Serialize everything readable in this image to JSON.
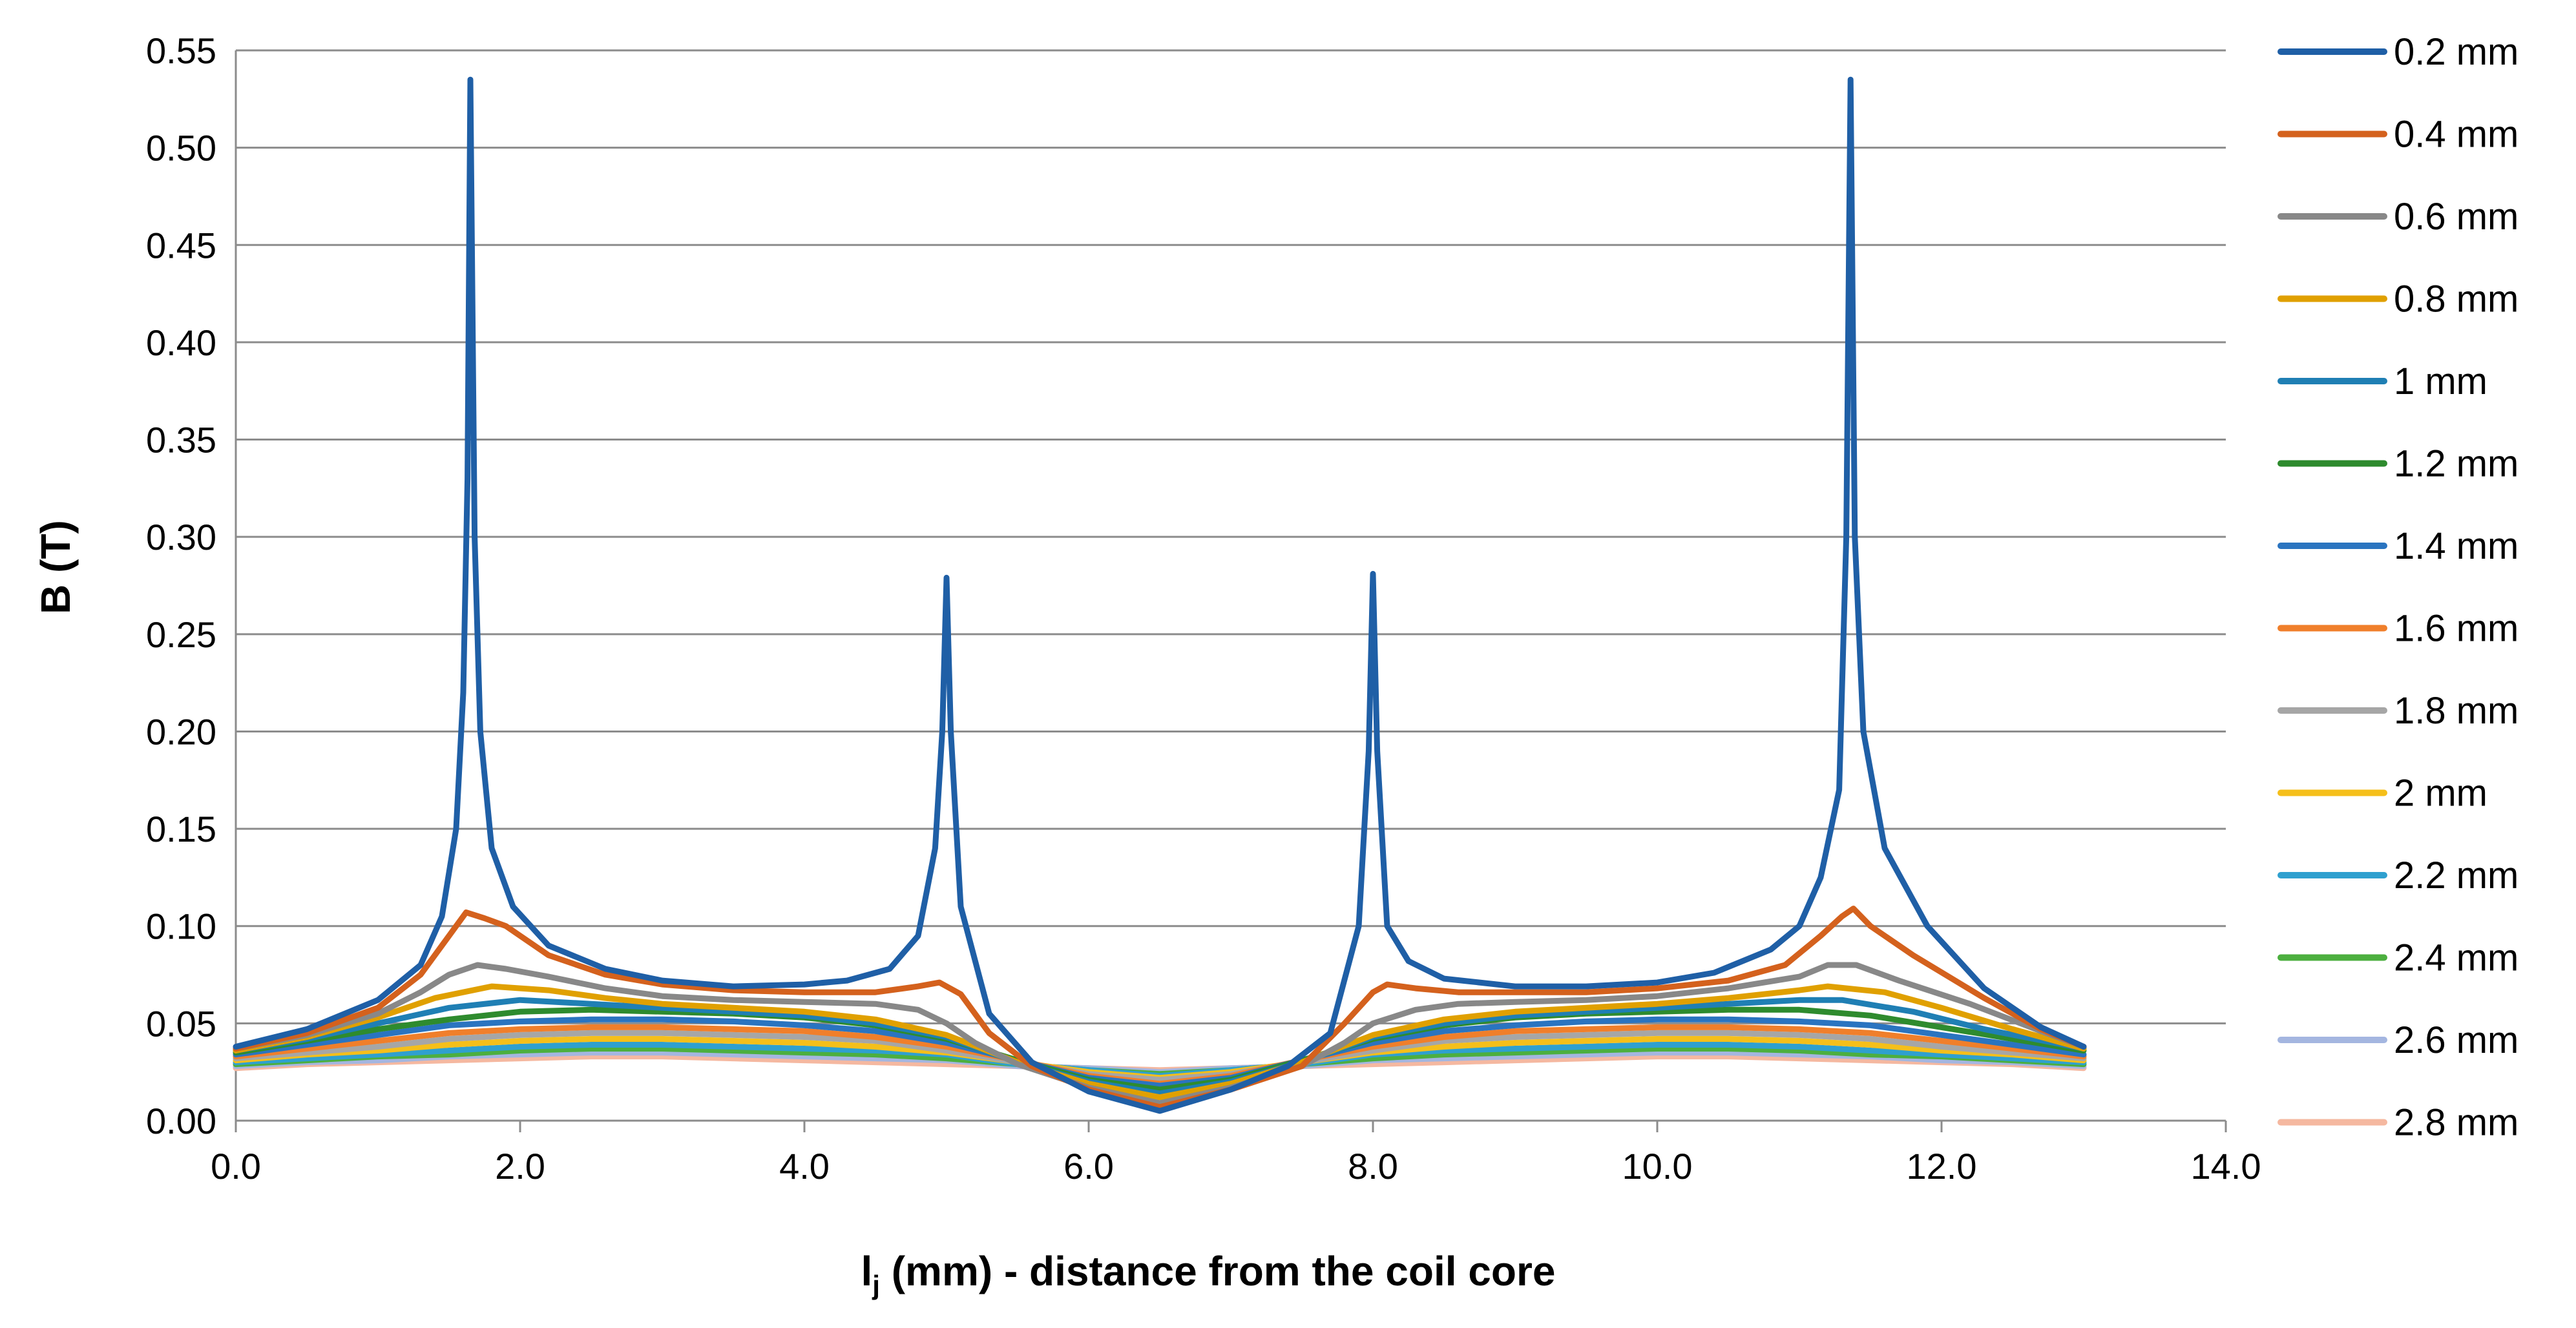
{
  "chart_data": {
    "type": "line",
    "title": "",
    "xlabel_main": "l",
    "xlabel_sub": "j",
    "xlabel_rest": " (mm) - distance from the coil core",
    "ylabel": "B (T)",
    "xlim": [
      0,
      14
    ],
    "ylim": [
      0,
      0.55
    ],
    "grid": "horizontal",
    "legend_position": "right",
    "x_ticks": [
      0,
      2,
      4,
      6,
      8,
      10,
      12,
      14
    ],
    "x_tick_labels": [
      "0.0",
      "2.0",
      "4.0",
      "6.0",
      "8.0",
      "10.0",
      "12.0",
      "14.0"
    ],
    "y_ticks": [
      0,
      0.05,
      0.1,
      0.15,
      0.2,
      0.25,
      0.3,
      0.35,
      0.4,
      0.45,
      0.5,
      0.55
    ],
    "y_tick_labels": [
      "0.00",
      "0.05",
      "0.10",
      "0.15",
      "0.20",
      "0.25",
      "0.30",
      "0.35",
      "0.40",
      "0.45",
      "0.50",
      "0.55"
    ],
    "series": [
      {
        "name": "0.2 mm",
        "color": "#1f5fa6",
        "x": [
          0,
          0.5,
          1.0,
          1.3,
          1.45,
          1.55,
          1.6,
          1.63,
          1.65,
          1.68,
          1.72,
          1.8,
          1.95,
          2.2,
          2.6,
          3.0,
          3.5,
          4.0,
          4.3,
          4.6,
          4.8,
          4.92,
          4.97,
          5.0,
          5.03,
          5.1,
          5.3,
          5.6,
          6.0,
          6.5,
          7.0,
          7.4,
          7.7,
          7.9,
          7.97,
          8.0,
          8.03,
          8.1,
          8.25,
          8.5,
          9.0,
          9.5,
          10.0,
          10.4,
          10.8,
          11.0,
          11.15,
          11.28,
          11.33,
          11.36,
          11.39,
          11.45,
          11.6,
          11.9,
          12.3,
          12.7,
          13.0
        ],
        "y": [
          0.038,
          0.047,
          0.062,
          0.08,
          0.105,
          0.15,
          0.22,
          0.33,
          0.535,
          0.3,
          0.2,
          0.14,
          0.11,
          0.09,
          0.078,
          0.072,
          0.069,
          0.07,
          0.072,
          0.078,
          0.095,
          0.14,
          0.2,
          0.279,
          0.2,
          0.11,
          0.055,
          0.03,
          0.015,
          0.005,
          0.016,
          0.028,
          0.045,
          0.1,
          0.19,
          0.281,
          0.19,
          0.1,
          0.082,
          0.073,
          0.069,
          0.069,
          0.071,
          0.076,
          0.088,
          0.1,
          0.125,
          0.17,
          0.3,
          0.535,
          0.3,
          0.2,
          0.14,
          0.1,
          0.068,
          0.048,
          0.038
        ]
      },
      {
        "name": "0.4 mm",
        "color": "#d4611d",
        "x": [
          0,
          0.5,
          1.0,
          1.3,
          1.5,
          1.62,
          1.75,
          1.9,
          2.2,
          2.6,
          3.0,
          3.5,
          4.0,
          4.5,
          4.8,
          4.95,
          5.1,
          5.3,
          5.6,
          6.0,
          6.5,
          7.0,
          7.5,
          7.8,
          8.0,
          8.1,
          8.3,
          8.6,
          9.0,
          9.5,
          10.0,
          10.5,
          10.9,
          11.15,
          11.3,
          11.38,
          11.5,
          11.8,
          12.3,
          12.7,
          13.0
        ],
        "y": [
          0.037,
          0.045,
          0.058,
          0.075,
          0.095,
          0.107,
          0.104,
          0.1,
          0.085,
          0.075,
          0.07,
          0.067,
          0.066,
          0.066,
          0.069,
          0.071,
          0.065,
          0.045,
          0.028,
          0.016,
          0.007,
          0.016,
          0.028,
          0.05,
          0.066,
          0.07,
          0.068,
          0.066,
          0.066,
          0.066,
          0.068,
          0.072,
          0.08,
          0.095,
          0.105,
          0.109,
          0.1,
          0.085,
          0.063,
          0.047,
          0.038
        ]
      },
      {
        "name": "0.6 mm",
        "color": "#888888",
        "x": [
          0,
          0.5,
          1.0,
          1.3,
          1.5,
          1.7,
          1.9,
          2.2,
          2.6,
          3.0,
          3.5,
          4.0,
          4.5,
          4.8,
          5.0,
          5.2,
          5.5,
          6.0,
          6.5,
          7.0,
          7.5,
          7.8,
          8.0,
          8.3,
          8.6,
          9.0,
          9.5,
          10.0,
          10.5,
          11.0,
          11.2,
          11.4,
          11.7,
          12.2,
          12.7,
          13.0
        ],
        "y": [
          0.037,
          0.044,
          0.055,
          0.066,
          0.075,
          0.08,
          0.078,
          0.074,
          0.068,
          0.064,
          0.062,
          0.061,
          0.06,
          0.057,
          0.05,
          0.04,
          0.029,
          0.017,
          0.009,
          0.017,
          0.028,
          0.04,
          0.05,
          0.057,
          0.06,
          0.061,
          0.062,
          0.064,
          0.068,
          0.074,
          0.08,
          0.08,
          0.072,
          0.06,
          0.046,
          0.038
        ]
      },
      {
        "name": "0.8 mm",
        "color": "#e0a000",
        "x": [
          0,
          0.5,
          1.0,
          1.4,
          1.8,
          2.2,
          2.6,
          3.0,
          3.5,
          4.0,
          4.5,
          5.0,
          5.5,
          6.0,
          6.5,
          7.0,
          7.5,
          8.0,
          8.5,
          9.0,
          9.5,
          10.0,
          10.5,
          11.0,
          11.2,
          11.6,
          12.0,
          12.5,
          13.0
        ],
        "y": [
          0.036,
          0.043,
          0.053,
          0.063,
          0.069,
          0.067,
          0.063,
          0.06,
          0.058,
          0.056,
          0.052,
          0.044,
          0.03,
          0.019,
          0.012,
          0.019,
          0.03,
          0.044,
          0.052,
          0.056,
          0.058,
          0.06,
          0.063,
          0.067,
          0.069,
          0.066,
          0.058,
          0.047,
          0.037
        ]
      },
      {
        "name": "1 mm",
        "color": "#1f7fb4",
        "x": [
          0,
          0.5,
          1.0,
          1.5,
          2.0,
          2.5,
          3.0,
          3.5,
          4.0,
          4.5,
          5.0,
          5.5,
          6.0,
          6.5,
          7.0,
          7.5,
          8.0,
          8.5,
          9.0,
          9.5,
          10.0,
          10.5,
          11.0,
          11.3,
          11.8,
          12.3,
          13.0
        ],
        "y": [
          0.036,
          0.042,
          0.05,
          0.058,
          0.062,
          0.06,
          0.058,
          0.056,
          0.054,
          0.05,
          0.043,
          0.03,
          0.02,
          0.014,
          0.02,
          0.03,
          0.043,
          0.05,
          0.054,
          0.056,
          0.058,
          0.06,
          0.062,
          0.062,
          0.056,
          0.047,
          0.037
        ]
      },
      {
        "name": "1.2 mm",
        "color": "#2e8b2e",
        "x": [
          0,
          0.5,
          1.0,
          1.5,
          2.0,
          2.5,
          3.0,
          3.5,
          4.0,
          4.5,
          5.0,
          5.5,
          6.0,
          6.5,
          7.0,
          7.5,
          8.0,
          8.5,
          9.0,
          9.5,
          10.0,
          10.5,
          11.0,
          11.5,
          12.0,
          12.5,
          13.0
        ],
        "y": [
          0.035,
          0.041,
          0.047,
          0.052,
          0.056,
          0.057,
          0.056,
          0.055,
          0.053,
          0.049,
          0.042,
          0.031,
          0.021,
          0.016,
          0.021,
          0.031,
          0.042,
          0.049,
          0.053,
          0.055,
          0.056,
          0.057,
          0.057,
          0.054,
          0.048,
          0.042,
          0.036
        ]
      },
      {
        "name": "1.4 mm",
        "color": "#2a74c0",
        "x": [
          0,
          0.5,
          1.0,
          1.5,
          2.0,
          2.5,
          3.0,
          3.5,
          4.0,
          4.5,
          5.0,
          5.5,
          6.0,
          6.5,
          7.0,
          7.5,
          8.0,
          8.5,
          9.0,
          9.5,
          10.0,
          10.5,
          11.0,
          11.5,
          12.0,
          12.5,
          13.0
        ],
        "y": [
          0.034,
          0.039,
          0.044,
          0.049,
          0.051,
          0.052,
          0.052,
          0.051,
          0.049,
          0.046,
          0.04,
          0.031,
          0.022,
          0.018,
          0.022,
          0.031,
          0.04,
          0.046,
          0.049,
          0.051,
          0.052,
          0.052,
          0.051,
          0.049,
          0.044,
          0.039,
          0.034
        ]
      },
      {
        "name": "1.6 mm",
        "color": "#f07f2b",
        "x": [
          0,
          0.5,
          1.0,
          1.5,
          2.0,
          2.5,
          3.0,
          3.5,
          4.0,
          4.5,
          5.0,
          5.5,
          6.0,
          6.5,
          7.0,
          7.5,
          8.0,
          8.5,
          9.0,
          9.5,
          10.0,
          10.5,
          11.0,
          11.5,
          12.0,
          12.5,
          13.0
        ],
        "y": [
          0.033,
          0.037,
          0.041,
          0.045,
          0.047,
          0.048,
          0.048,
          0.047,
          0.046,
          0.043,
          0.038,
          0.031,
          0.023,
          0.019,
          0.023,
          0.031,
          0.038,
          0.043,
          0.046,
          0.047,
          0.048,
          0.048,
          0.047,
          0.045,
          0.041,
          0.037,
          0.033
        ]
      },
      {
        "name": "1.8 mm",
        "color": "#a6a6a6",
        "x": [
          0,
          0.5,
          1.0,
          1.5,
          2.0,
          2.5,
          3.0,
          3.5,
          4.0,
          4.5,
          5.0,
          5.5,
          6.0,
          6.5,
          7.0,
          7.5,
          8.0,
          8.5,
          9.0,
          9.5,
          10.0,
          10.5,
          11.0,
          11.5,
          12.0,
          12.5,
          13.0
        ],
        "y": [
          0.032,
          0.035,
          0.038,
          0.042,
          0.044,
          0.045,
          0.045,
          0.044,
          0.043,
          0.041,
          0.036,
          0.03,
          0.024,
          0.021,
          0.024,
          0.03,
          0.036,
          0.041,
          0.043,
          0.044,
          0.045,
          0.045,
          0.044,
          0.042,
          0.038,
          0.035,
          0.032
        ]
      },
      {
        "name": "2 mm",
        "color": "#f5bf1a",
        "x": [
          0,
          0.5,
          1.0,
          1.5,
          2.0,
          2.5,
          3.0,
          3.5,
          4.0,
          4.5,
          5.0,
          5.5,
          6.0,
          6.5,
          7.0,
          7.5,
          8.0,
          8.5,
          9.0,
          9.5,
          10.0,
          10.5,
          11.0,
          11.5,
          12.0,
          12.5,
          13.0
        ],
        "y": [
          0.031,
          0.034,
          0.036,
          0.039,
          0.041,
          0.042,
          0.042,
          0.041,
          0.04,
          0.038,
          0.035,
          0.03,
          0.025,
          0.022,
          0.025,
          0.03,
          0.035,
          0.038,
          0.04,
          0.041,
          0.042,
          0.042,
          0.041,
          0.039,
          0.036,
          0.034,
          0.031
        ]
      },
      {
        "name": "2.2 mm",
        "color": "#2fa0cf",
        "x": [
          0,
          0.5,
          1.0,
          1.5,
          2.0,
          2.5,
          3.0,
          3.5,
          4.0,
          4.5,
          5.0,
          5.5,
          6.0,
          6.5,
          7.0,
          7.5,
          8.0,
          8.5,
          9.0,
          9.5,
          10.0,
          10.5,
          11.0,
          11.5,
          12.0,
          12.5,
          13.0
        ],
        "y": [
          0.03,
          0.032,
          0.034,
          0.036,
          0.038,
          0.039,
          0.039,
          0.038,
          0.037,
          0.036,
          0.034,
          0.029,
          0.026,
          0.023,
          0.026,
          0.029,
          0.034,
          0.036,
          0.037,
          0.038,
          0.039,
          0.039,
          0.038,
          0.036,
          0.034,
          0.032,
          0.03
        ]
      },
      {
        "name": "2.4 mm",
        "color": "#4caf3f",
        "x": [
          0,
          0.5,
          1.0,
          1.5,
          2.0,
          2.5,
          3.0,
          3.5,
          4.0,
          4.5,
          5.0,
          5.5,
          6.0,
          6.5,
          7.0,
          7.5,
          8.0,
          8.5,
          9.0,
          9.5,
          10.0,
          10.5,
          11.0,
          11.5,
          12.0,
          12.5,
          13.0
        ],
        "y": [
          0.029,
          0.031,
          0.033,
          0.034,
          0.036,
          0.037,
          0.037,
          0.036,
          0.035,
          0.034,
          0.032,
          0.029,
          0.026,
          0.024,
          0.026,
          0.029,
          0.032,
          0.034,
          0.035,
          0.036,
          0.037,
          0.037,
          0.036,
          0.034,
          0.033,
          0.031,
          0.029
        ]
      },
      {
        "name": "2.6 mm",
        "color": "#a4b6e0",
        "x": [
          0,
          0.5,
          1.0,
          1.5,
          2.0,
          2.5,
          3.0,
          3.5,
          4.0,
          4.5,
          5.0,
          5.5,
          6.0,
          6.5,
          7.0,
          7.5,
          8.0,
          8.5,
          9.0,
          9.5,
          10.0,
          10.5,
          11.0,
          11.5,
          12.0,
          12.5,
          13.0
        ],
        "y": [
          0.028,
          0.03,
          0.031,
          0.033,
          0.034,
          0.035,
          0.035,
          0.034,
          0.033,
          0.032,
          0.031,
          0.028,
          0.027,
          0.025,
          0.027,
          0.028,
          0.031,
          0.032,
          0.033,
          0.034,
          0.035,
          0.035,
          0.034,
          0.033,
          0.031,
          0.03,
          0.028
        ]
      },
      {
        "name": "2.8 mm",
        "color": "#f5b8a0",
        "x": [
          0,
          0.5,
          1.0,
          1.5,
          2.0,
          2.5,
          3.0,
          3.5,
          4.0,
          4.5,
          5.0,
          5.5,
          6.0,
          6.5,
          7.0,
          7.5,
          8.0,
          8.5,
          9.0,
          9.5,
          10.0,
          10.5,
          11.0,
          11.5,
          12.0,
          12.5,
          13.0
        ],
        "y": [
          0.027,
          0.029,
          0.03,
          0.031,
          0.032,
          0.033,
          0.033,
          0.032,
          0.031,
          0.03,
          0.029,
          0.028,
          0.027,
          0.026,
          0.027,
          0.028,
          0.029,
          0.03,
          0.031,
          0.032,
          0.033,
          0.033,
          0.032,
          0.031,
          0.03,
          0.029,
          0.027
        ]
      }
    ]
  }
}
